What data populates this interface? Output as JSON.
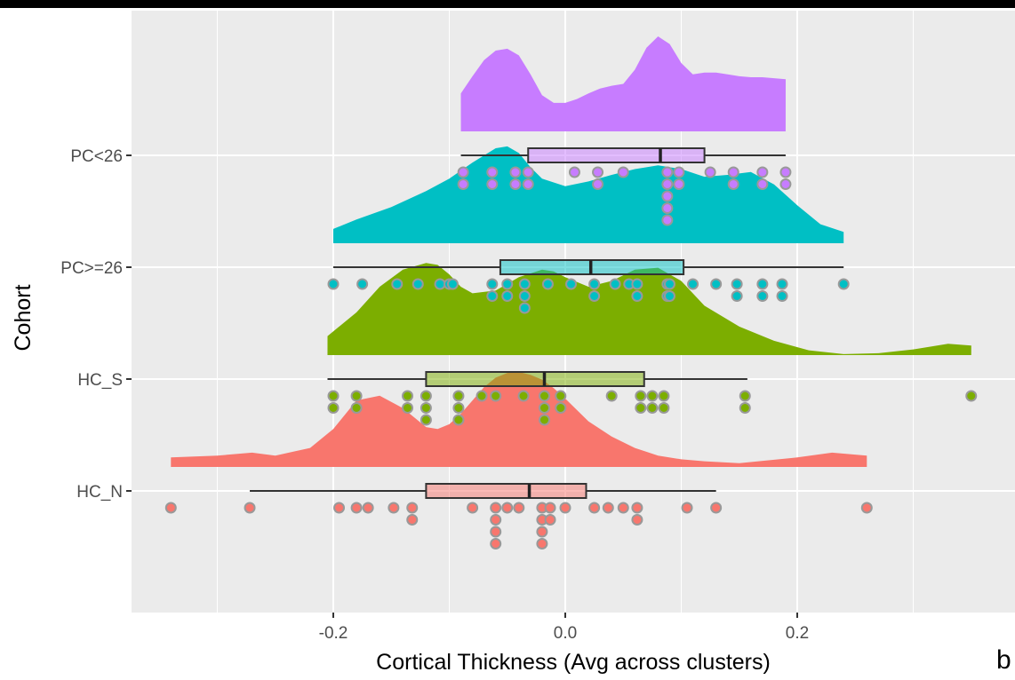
{
  "chart_data": {
    "type": "raincloud",
    "title": "",
    "xlabel": "Cortical Thickness (Avg across clusters)",
    "ylabel": "Cohort",
    "xlim": [
      -0.345,
      0.36
    ],
    "x_ticks": [
      -0.2,
      0.0,
      0.2
    ],
    "x_tick_labels": [
      "-0.2",
      "0.0",
      "0.2"
    ],
    "x_minor_ticks": [
      -0.3,
      -0.1,
      0.1,
      0.3
    ],
    "grid": true,
    "background": "#ebebeb",
    "categories": [
      "HC_N",
      "HC_S",
      "PC>=26",
      "PC<26"
    ],
    "series": [
      {
        "name": "HC_N",
        "color": "#F8766D",
        "box": {
          "whisker_low": -0.272,
          "q1": -0.12,
          "median": -0.031,
          "q3": 0.018,
          "whisker_high": 0.13
        },
        "density": {
          "xmin": -0.34,
          "xmax": 0.26,
          "x": [
            -0.34,
            -0.3,
            -0.27,
            -0.25,
            -0.22,
            -0.2,
            -0.18,
            -0.16,
            -0.14,
            -0.12,
            -0.11,
            -0.1,
            -0.09,
            -0.08,
            -0.07,
            -0.06,
            -0.05,
            -0.04,
            -0.03,
            -0.02,
            -0.01,
            0.0,
            0.02,
            0.04,
            0.06,
            0.08,
            0.1,
            0.12,
            0.15,
            0.2,
            0.23,
            0.26
          ],
          "y": [
            0.1,
            0.12,
            0.15,
            0.12,
            0.2,
            0.4,
            0.7,
            0.75,
            0.62,
            0.42,
            0.4,
            0.45,
            0.56,
            0.7,
            0.84,
            0.94,
            0.99,
            1.0,
            0.97,
            0.92,
            0.83,
            0.72,
            0.48,
            0.32,
            0.2,
            0.12,
            0.08,
            0.06,
            0.04,
            0.1,
            0.15,
            0.12
          ]
        },
        "points": [
          -0.34,
          -0.272,
          -0.195,
          -0.18,
          -0.17,
          -0.148,
          -0.132,
          -0.132,
          -0.08,
          -0.06,
          -0.06,
          -0.06,
          -0.06,
          -0.05,
          -0.04,
          -0.02,
          -0.02,
          -0.02,
          -0.02,
          -0.013,
          -0.013,
          0.0,
          0.025,
          0.037,
          0.05,
          0.062,
          0.062,
          0.105,
          0.13,
          0.26
        ]
      },
      {
        "name": "HC_S",
        "color": "#7CAE00",
        "box": {
          "whisker_low": -0.205,
          "q1": -0.12,
          "median": -0.018,
          "q3": 0.068,
          "whisker_high": 0.157
        },
        "density": {
          "xmin": -0.205,
          "xmax": 0.35,
          "x": [
            -0.205,
            -0.18,
            -0.16,
            -0.14,
            -0.12,
            -0.11,
            -0.1,
            -0.09,
            -0.08,
            -0.06,
            -0.04,
            -0.02,
            -0.01,
            0.0,
            0.02,
            0.04,
            0.06,
            0.08,
            0.1,
            0.12,
            0.15,
            0.18,
            0.21,
            0.24,
            0.27,
            0.3,
            0.33,
            0.35
          ],
          "y": [
            0.2,
            0.45,
            0.72,
            0.9,
            0.97,
            0.95,
            0.85,
            0.72,
            0.65,
            0.68,
            0.82,
            0.9,
            0.88,
            0.82,
            0.72,
            0.78,
            0.9,
            0.92,
            0.78,
            0.52,
            0.3,
            0.15,
            0.05,
            0.01,
            0.02,
            0.06,
            0.12,
            0.1
          ]
        },
        "points": [
          -0.2,
          -0.2,
          -0.18,
          -0.18,
          -0.136,
          -0.136,
          -0.12,
          -0.12,
          -0.12,
          -0.092,
          -0.092,
          -0.092,
          -0.072,
          -0.06,
          -0.036,
          -0.018,
          -0.018,
          -0.018,
          -0.004,
          -0.004,
          0.04,
          0.065,
          0.065,
          0.075,
          0.075,
          0.085,
          0.085,
          0.155,
          0.155,
          0.35
        ]
      },
      {
        "name": "PC>=26",
        "color": "#00BFC4",
        "box": {
          "whisker_low": -0.2,
          "q1": -0.056,
          "median": 0.022,
          "q3": 0.102,
          "whisker_high": 0.24
        },
        "density": {
          "xmin": -0.2,
          "xmax": 0.24,
          "x": [
            -0.2,
            -0.18,
            -0.15,
            -0.12,
            -0.1,
            -0.08,
            -0.06,
            -0.05,
            -0.04,
            -0.03,
            -0.02,
            0.0,
            0.02,
            0.04,
            0.06,
            0.08,
            0.1,
            0.12,
            0.14,
            0.16,
            0.18,
            0.2,
            0.22,
            0.24
          ],
          "y": [
            0.15,
            0.25,
            0.38,
            0.55,
            0.68,
            0.85,
            1.0,
            1.02,
            0.95,
            0.8,
            0.68,
            0.6,
            0.65,
            0.72,
            0.78,
            0.82,
            0.78,
            0.7,
            0.72,
            0.75,
            0.62,
            0.4,
            0.2,
            0.12
          ]
        },
        "points": [
          -0.2,
          -0.175,
          -0.145,
          -0.127,
          -0.108,
          -0.1,
          -0.097,
          -0.063,
          -0.063,
          -0.05,
          -0.05,
          -0.035,
          -0.035,
          -0.035,
          -0.015,
          0.005,
          0.025,
          0.025,
          0.043,
          0.055,
          0.062,
          0.062,
          0.088,
          0.088,
          0.09,
          0.09,
          0.11,
          0.13,
          0.148,
          0.148,
          0.17,
          0.17,
          0.187,
          0.187,
          0.24
        ]
      },
      {
        "name": "PC<26",
        "color": "#C77CFF",
        "box": {
          "whisker_low": -0.09,
          "q1": -0.032,
          "median": 0.082,
          "q3": 0.12,
          "whisker_high": 0.19
        },
        "density": {
          "xmin": -0.09,
          "xmax": 0.19,
          "x": [
            -0.09,
            -0.08,
            -0.07,
            -0.06,
            -0.05,
            -0.04,
            -0.03,
            -0.02,
            -0.01,
            0.0,
            0.01,
            0.02,
            0.03,
            0.04,
            0.05,
            0.06,
            0.07,
            0.08,
            0.09,
            0.1,
            0.11,
            0.12,
            0.13,
            0.14,
            0.15,
            0.16,
            0.17,
            0.18,
            0.19
          ],
          "y": [
            0.4,
            0.58,
            0.75,
            0.85,
            0.87,
            0.8,
            0.6,
            0.38,
            0.3,
            0.3,
            0.34,
            0.4,
            0.45,
            0.48,
            0.5,
            0.65,
            0.88,
            1.0,
            0.92,
            0.72,
            0.6,
            0.62,
            0.62,
            0.6,
            0.58,
            0.57,
            0.57,
            0.56,
            0.55
          ]
        },
        "points": [
          -0.088,
          -0.088,
          -0.063,
          -0.063,
          -0.043,
          -0.043,
          -0.032,
          -0.032,
          0.008,
          0.028,
          0.028,
          0.05,
          0.088,
          0.088,
          0.088,
          0.088,
          0.088,
          0.098,
          0.098,
          0.125,
          0.145,
          0.145,
          0.17,
          0.17,
          0.19,
          0.19
        ]
      }
    ]
  },
  "panel_letter": "b"
}
